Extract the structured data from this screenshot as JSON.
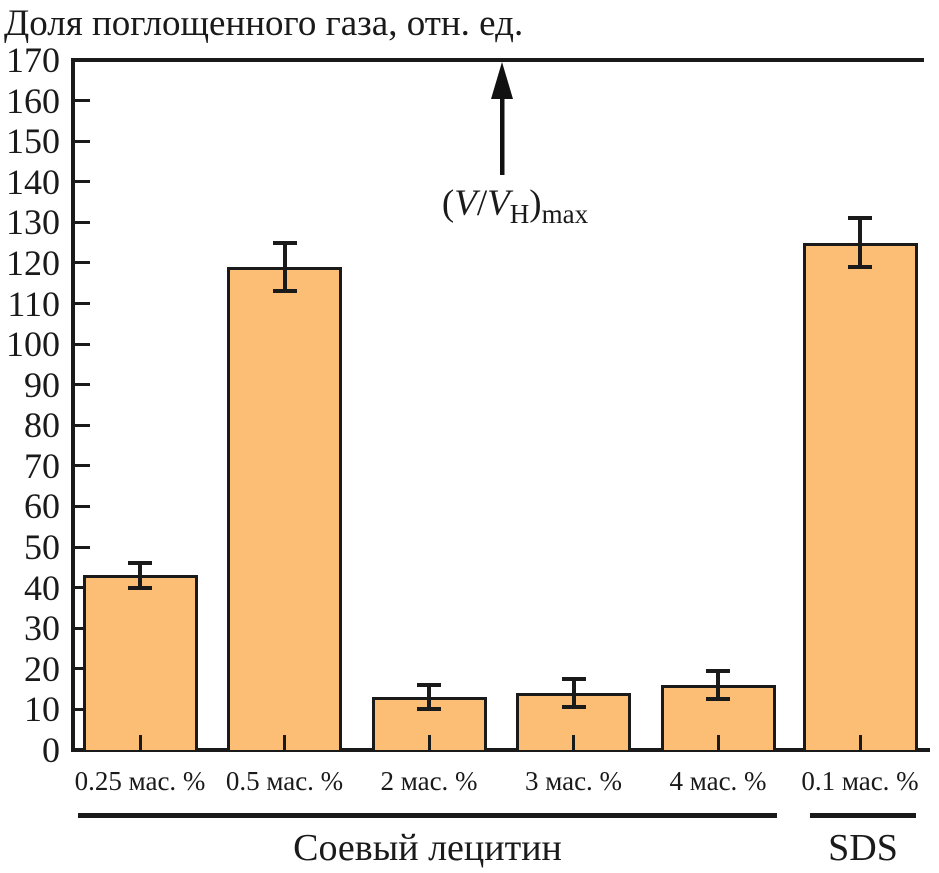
{
  "chart_data": {
    "type": "bar",
    "title": "Доля поглощенного газа, отн. ед.",
    "categories": [
      "0.25 мас. %",
      "0.5 мас. %",
      "2 мас. %",
      "3 мас. %",
      "4 мас. %",
      "0.1 мас. %"
    ],
    "values": [
      43,
      119,
      13,
      14,
      16,
      125
    ],
    "errors": [
      3,
      6,
      3,
      3.5,
      3.5,
      6
    ],
    "series": [
      {
        "name": "Соевый лецитин",
        "categories": [
          "0.25 мас. %",
          "0.5 мас. %",
          "2 мас. %",
          "3 мас. %",
          "4 мас. %"
        ],
        "values": [
          43,
          119,
          13,
          14,
          16
        ]
      },
      {
        "name": "SDS",
        "categories": [
          "0.1 мас. %"
        ],
        "values": [
          125
        ]
      }
    ],
    "groups": [
      {
        "label": "Соевый лецитин",
        "first_bar": 0,
        "last_bar": 4
      },
      {
        "label": "SDS",
        "first_bar": 5,
        "last_bar": 5
      }
    ],
    "ylim": [
      0,
      170
    ],
    "ytick_step": 10,
    "yticks": [
      0,
      10,
      20,
      30,
      40,
      50,
      60,
      70,
      80,
      90,
      100,
      110,
      120,
      130,
      140,
      150,
      160,
      170
    ],
    "xlabel": "",
    "ylabel": "Доля поглощенного газа, отн. ед.",
    "grid": "off",
    "legend": "none",
    "annotation": {
      "meaning": "(V/V_H)max",
      "open_paren": "(",
      "v1": "V",
      "slash": "/",
      "v2": "V",
      "sub_h": "H",
      "close_paren": ")",
      "sub_max": "max"
    },
    "bar_color": "#FBBE74",
    "line_color": "#1A1A1A"
  }
}
